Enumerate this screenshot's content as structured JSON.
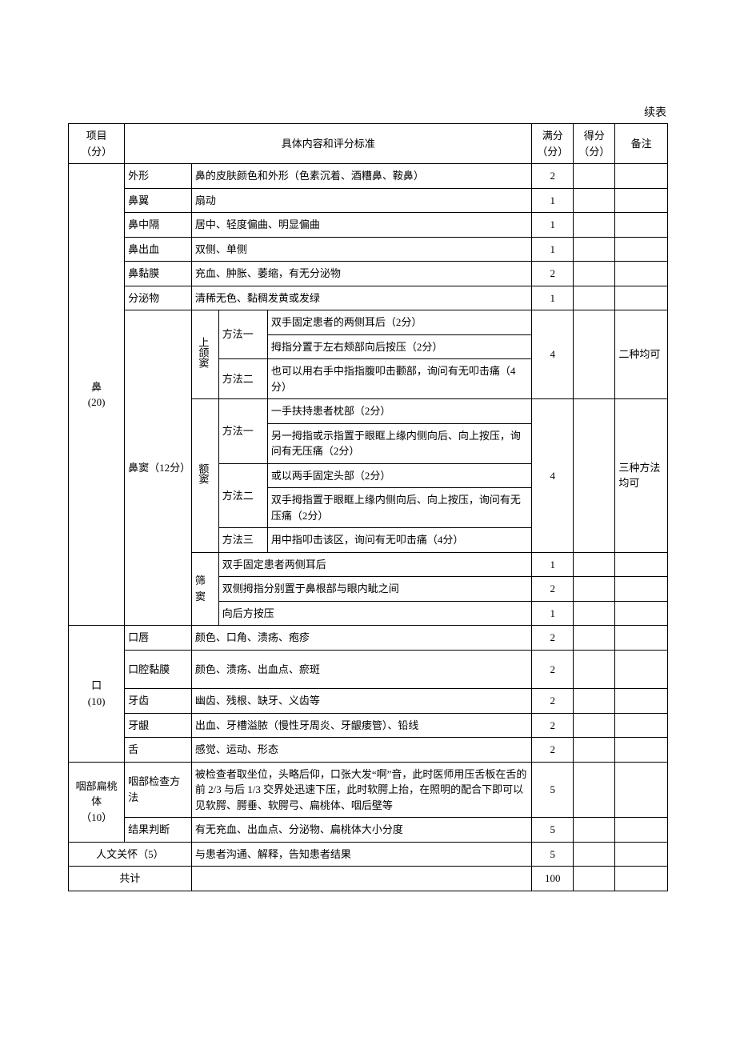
{
  "continuedLabel": "续表",
  "columns": {
    "item": "项目\n（分）",
    "content": "具体内容和评分标准",
    "full": "满分\n（分）",
    "score": "得分\n（分）",
    "note": "备注"
  },
  "colWidths": {
    "c1": 62,
    "c2": 74,
    "c3": 30,
    "c4": 54,
    "c5": 292,
    "c6": 46,
    "c7": 46,
    "c8": 58
  },
  "sections": {
    "nose": {
      "label": "鼻\n(20)",
      "rows": {
        "shape": {
          "sub": "外形",
          "content": "鼻的皮肤颜色和外形（色素沉着、酒糟鼻、鞍鼻）",
          "full": "2"
        },
        "wing": {
          "sub": "鼻翼",
          "content": "扇动",
          "full": "1"
        },
        "septum": {
          "sub": "鼻中隔",
          "content": "居中、轻度偏曲、明显偏曲",
          "full": "1"
        },
        "bleed": {
          "sub": "鼻出血",
          "content": "双侧、单侧",
          "full": "1"
        },
        "mucosa": {
          "sub": "鼻黏膜",
          "content": "充血、肿胀、萎缩，有无分泌物",
          "full": "2"
        },
        "secret": {
          "sub": "分泌物",
          "content": "清稀无色、黏稠发黄或发绿",
          "full": "1"
        }
      },
      "sinus": {
        "label": "鼻窦（12分）",
        "maxillary": {
          "label": "上颌窦",
          "m1": {
            "label": "方法一",
            "a": "双手固定患者的两侧耳后（2分）",
            "b": "拇指分置于左右颊部向后按压（2分）"
          },
          "m2": {
            "label": "方法二",
            "a": "也可以用右手中指指腹叩击颧部，询问有无叩击痛（4分）"
          },
          "full": "4",
          "note": "二种均可"
        },
        "frontal": {
          "label": "额窦",
          "m1": {
            "label": "方法一",
            "a": "一手扶持患者枕部（2分）",
            "b": "另一拇指或示指置于眼眶上缘内侧向后、向上按压，询问有无压痛（2分）"
          },
          "m2": {
            "label": "方法二",
            "a": "或以两手固定头部（2分）",
            "b": "双手拇指置于眼眶上缘内侧向后、向上按压，询问有无压痛（2分）"
          },
          "m3": {
            "label": "方法三",
            "a": "用中指叩击该区，询问有无叩击痛（4分）"
          },
          "full": "4",
          "note": "三种方法均可"
        },
        "ethmoid": {
          "label": "筛窦",
          "r1": {
            "content": "双手固定患者两侧耳后",
            "full": "1"
          },
          "r2": {
            "content": "双侧拇指分别置于鼻根部与眼内眦之间",
            "full": "2"
          },
          "r3": {
            "content": "向后方按压",
            "full": "1"
          }
        }
      }
    },
    "mouth": {
      "label": "口\n(10)",
      "lips": {
        "sub": "口唇",
        "content": "颜色、口角、溃疡、疱疹",
        "full": "2"
      },
      "mucosa": {
        "sub": "口腔黏膜",
        "content": "颜色、溃疡、出血点、瘀斑",
        "full": "2"
      },
      "teeth": {
        "sub": "牙齿",
        "content": "幽齿、残根、缺牙、义齿等",
        "full": "2"
      },
      "gum": {
        "sub": "牙龈",
        "content": "出血、牙槽溢脓（慢性牙周炎、牙龈瘘管）、铅线",
        "full": "2"
      },
      "tongue": {
        "sub": "舌",
        "content": "感觉、运动、形态",
        "full": "2"
      }
    },
    "pharynx": {
      "label": "咽部扁桃体\n（10）",
      "method": {
        "sub": "咽部检查方法",
        "content": "被检查者取坐位，头略后仰，口张大发“啊”音，此时医师用压舌板在舌的前 2/3 与后 1/3 交界处迅速下压，此时软腭上抬，在照明的配合下即可以见软腭、腭垂、软腭弓、扁桃体、咽后壁等",
        "full": "5"
      },
      "result": {
        "sub": "结果判断",
        "content": "有无充血、出血点、分泌物、扁桃体大小分度",
        "full": "5"
      }
    },
    "humanistic": {
      "label": "人文关怀（5）",
      "content": "与患者沟通、解释，告知患者结果",
      "full": "5"
    },
    "total": {
      "label": "共计",
      "full": "100"
    }
  }
}
